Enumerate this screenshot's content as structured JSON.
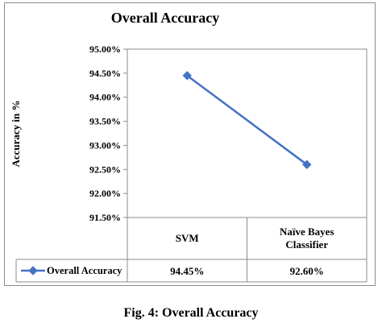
{
  "chart_data": {
    "type": "line",
    "title": "Overall Accuracy",
    "ylabel": "Accuracy in %",
    "xlabel": "",
    "categories": [
      "SVM",
      "Naïve Bayes Classifier"
    ],
    "category_lines": [
      [
        "SVM"
      ],
      [
        "Naïve Bayes",
        "Classifier"
      ]
    ],
    "series": [
      {
        "name": "Overall Accuracy",
        "values": [
          94.45,
          92.6
        ],
        "display_values": [
          "94.45%",
          "92.60%"
        ],
        "color": "#4472c4",
        "marker": "diamond"
      }
    ],
    "ylim": [
      91.5,
      95.0
    ],
    "yticks": [
      95.0,
      94.5,
      94.0,
      93.5,
      93.0,
      92.5,
      92.0,
      91.5
    ],
    "ytick_labels": [
      "95.00%",
      "94.50%",
      "94.00%",
      "93.50%",
      "93.00%",
      "92.50%",
      "92.00%",
      "91.50%"
    ],
    "grid": false,
    "legend": "data-table",
    "data_table": true
  },
  "caption": "Fig. 4: Overall Accuracy"
}
